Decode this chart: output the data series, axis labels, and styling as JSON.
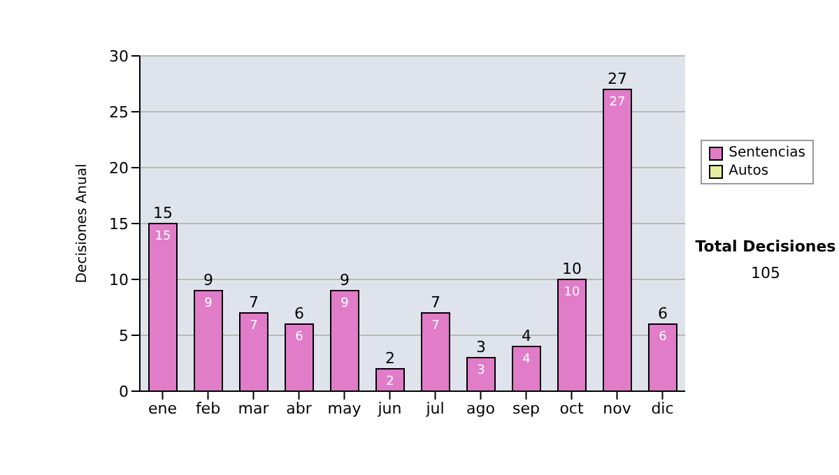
{
  "chart_data": {
    "type": "bar",
    "ylabel": "Decisiones Anual",
    "categories": [
      "ene",
      "feb",
      "mar",
      "abr",
      "may",
      "jun",
      "jul",
      "ago",
      "sep",
      "oct",
      "nov",
      "dic"
    ],
    "series": [
      {
        "name": "Sentencias",
        "color": "#e07cc8",
        "values": [
          15,
          9,
          7,
          6,
          9,
          2,
          7,
          3,
          4,
          10,
          27,
          6
        ]
      },
      {
        "name": "Autos",
        "color": "#e4ee9c",
        "values": [
          null,
          null,
          null,
          null,
          null,
          null,
          null,
          null,
          null,
          null,
          null,
          null
        ]
      }
    ],
    "stacked": true,
    "data_labels": true,
    "totals": [
      "15",
      "9",
      "7",
      "6",
      "9",
      "2",
      "7",
      "3",
      "4",
      "10",
      "27",
      "6"
    ],
    "ylim": [
      0,
      30
    ],
    "yticks": [
      0,
      5,
      10,
      15,
      20,
      25,
      30
    ],
    "grid": "y",
    "legend": "right",
    "annotations": [
      "Total Decisiones",
      "105"
    ]
  }
}
